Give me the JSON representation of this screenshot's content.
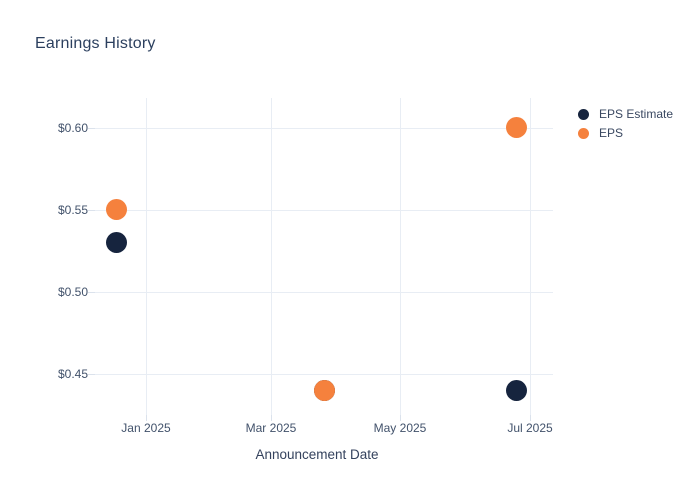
{
  "page": {
    "background": "#ffffff"
  },
  "chart_data": {
    "type": "scatter",
    "title": "Earnings History",
    "xlabel": "Announcement Date",
    "ylabel": "",
    "grid": true,
    "legend_position": "right",
    "x_ticks": [
      {
        "date": "2025-01-01",
        "label": "Jan 2025"
      },
      {
        "date": "2025-03-01",
        "label": "Mar 2025"
      },
      {
        "date": "2025-05-01",
        "label": "May 2025"
      },
      {
        "date": "2025-07-01",
        "label": "Jul 2025"
      }
    ],
    "y_ticks": [
      {
        "value": 0.6,
        "label": "$0.60"
      },
      {
        "value": 0.55,
        "label": "$0.55"
      },
      {
        "value": 0.5,
        "label": "$0.50"
      },
      {
        "value": 0.45,
        "label": "$0.45"
      }
    ],
    "xlim": [
      "2024-12-08",
      "2025-07-12"
    ],
    "ylim": [
      0.425,
      0.618
    ],
    "marker_size_px": 21,
    "series": [
      {
        "name": "EPS Estimate",
        "color": "#16243e",
        "points": [
          {
            "x": "2024-12-18",
            "y": 0.53
          },
          {
            "x": "2025-03-26",
            "y": 0.44
          },
          {
            "x": "2025-06-25",
            "y": 0.44
          }
        ]
      },
      {
        "name": "EPS",
        "color": "#f5813d",
        "points": [
          {
            "x": "2024-12-18",
            "y": 0.55
          },
          {
            "x": "2025-03-26",
            "y": 0.44
          },
          {
            "x": "2025-06-25",
            "y": 0.6
          }
        ]
      }
    ],
    "colors": {
      "grid": "#e8edf4",
      "tick": "#dbe2ec",
      "title_text": "#2b3f5e",
      "tick_text": "#42526b",
      "axis_title_text": "#34425d",
      "legend_text": "#3a4861"
    }
  }
}
